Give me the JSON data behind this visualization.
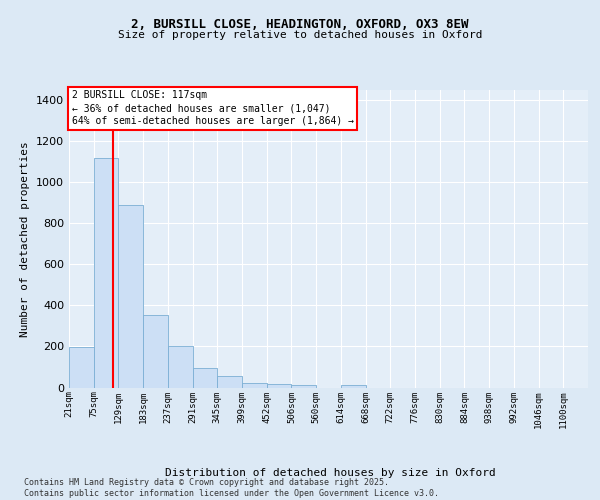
{
  "title1": "2, BURSILL CLOSE, HEADINGTON, OXFORD, OX3 8EW",
  "title2": "Size of property relative to detached houses in Oxford",
  "xlabel": "Distribution of detached houses by size in Oxford",
  "ylabel": "Number of detached properties",
  "categories": [
    "21sqm",
    "75sqm",
    "129sqm",
    "183sqm",
    "237sqm",
    "291sqm",
    "345sqm",
    "399sqm",
    "452sqm",
    "506sqm",
    "560sqm",
    "614sqm",
    "668sqm",
    "722sqm",
    "776sqm",
    "830sqm",
    "884sqm",
    "938sqm",
    "992sqm",
    "1046sqm",
    "1100sqm"
  ],
  "values": [
    195,
    1120,
    890,
    355,
    200,
    93,
    58,
    23,
    18,
    12,
    0,
    12,
    0,
    0,
    0,
    0,
    0,
    0,
    0,
    0,
    0
  ],
  "bar_color": "#ccdff5",
  "bar_edge_color": "#7bafd4",
  "property_line_label": "2 BURSILL CLOSE: 117sqm",
  "annotation_line1": "← 36% of detached houses are smaller (1,047)",
  "annotation_line2": "64% of semi-detached houses are larger (1,864) →",
  "ylim": [
    0,
    1450
  ],
  "yticks": [
    0,
    200,
    400,
    600,
    800,
    1000,
    1200,
    1400
  ],
  "bin_width": 54,
  "footer": "Contains HM Land Registry data © Crown copyright and database right 2025.\nContains public sector information licensed under the Open Government Licence v3.0.",
  "bg_color": "#dce9f5",
  "plot_bg_color": "#e4eef8"
}
